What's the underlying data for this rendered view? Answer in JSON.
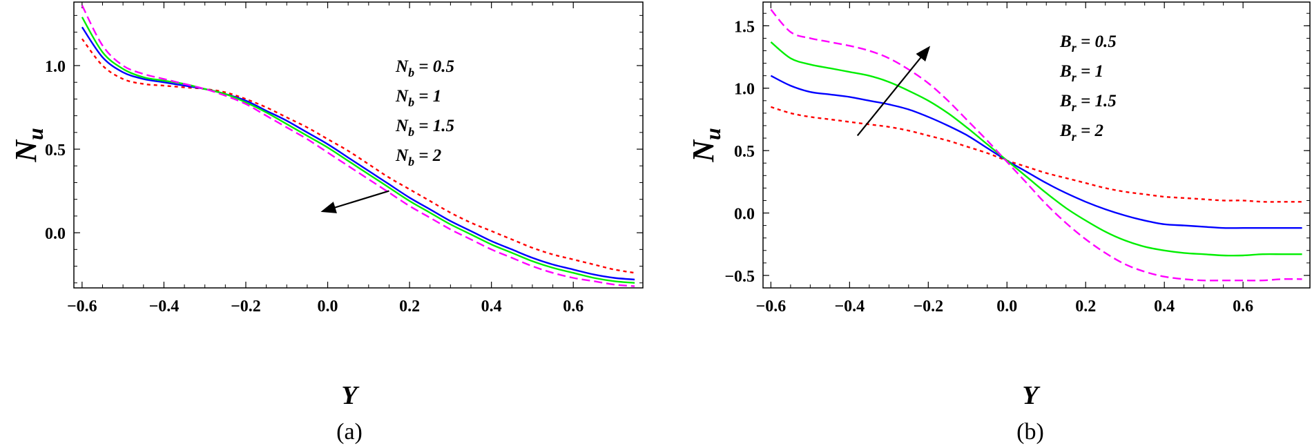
{
  "chart_data": [
    {
      "type": "line",
      "caption": "(a)",
      "xlabel": "Y",
      "ylabel": "N",
      "ylabel_sub": "u",
      "xlim": [
        -0.62,
        0.77
      ],
      "ylim": [
        -0.33,
        1.38
      ],
      "x_ticks": [
        -0.6,
        -0.4,
        -0.2,
        0.0,
        0.2,
        0.4,
        0.6
      ],
      "x_tick_labels": [
        "−0.6",
        "−0.4",
        "−0.2",
        "0.0",
        "0.2",
        "0.4",
        "0.6"
      ],
      "y_ticks": [
        0.0,
        0.5,
        1.0
      ],
      "y_tick_labels": [
        "0.0",
        "0.5",
        "1.0"
      ],
      "legend_position": "center-right",
      "legend": [
        {
          "sym": "N",
          "sub": "b",
          "value": "0.5"
        },
        {
          "sym": "N",
          "sub": "b",
          "value": "1"
        },
        {
          "sym": "N",
          "sub": "b",
          "value": "1.5"
        },
        {
          "sym": "N",
          "sub": "b",
          "value": "2"
        }
      ],
      "arrow": {
        "from": [
          0.15,
          0.25
        ],
        "to": [
          -0.01,
          0.13
        ]
      },
      "series": [
        {
          "name": "Nb = 0.5",
          "color": "#ff0000",
          "dash": "dotted",
          "x": [
            -0.6,
            -0.55,
            -0.5,
            -0.45,
            -0.4,
            -0.35,
            -0.3,
            -0.25,
            -0.2,
            -0.15,
            -0.1,
            -0.05,
            0.0,
            0.05,
            0.1,
            0.15,
            0.2,
            0.25,
            0.3,
            0.35,
            0.4,
            0.45,
            0.5,
            0.55,
            0.6,
            0.65,
            0.7,
            0.75
          ],
          "y": [
            1.16,
            1.0,
            0.92,
            0.89,
            0.88,
            0.87,
            0.86,
            0.84,
            0.8,
            0.75,
            0.69,
            0.63,
            0.56,
            0.49,
            0.41,
            0.33,
            0.26,
            0.19,
            0.12,
            0.06,
            0.01,
            -0.04,
            -0.09,
            -0.13,
            -0.16,
            -0.19,
            -0.22,
            -0.24
          ]
        },
        {
          "name": "Nb = 1",
          "color": "#0000ff",
          "dash": "solid",
          "x": [
            -0.6,
            -0.55,
            -0.5,
            -0.45,
            -0.4,
            -0.35,
            -0.3,
            -0.25,
            -0.2,
            -0.15,
            -0.1,
            -0.05,
            0.0,
            0.05,
            0.1,
            0.15,
            0.2,
            0.25,
            0.3,
            0.35,
            0.4,
            0.45,
            0.5,
            0.55,
            0.6,
            0.65,
            0.7,
            0.75
          ],
          "y": [
            1.23,
            1.05,
            0.96,
            0.92,
            0.9,
            0.88,
            0.86,
            0.83,
            0.79,
            0.73,
            0.67,
            0.6,
            0.53,
            0.45,
            0.37,
            0.29,
            0.21,
            0.14,
            0.07,
            0.01,
            -0.05,
            -0.1,
            -0.15,
            -0.19,
            -0.22,
            -0.25,
            -0.27,
            -0.28
          ]
        },
        {
          "name": "Nb = 1.5",
          "color": "#00ee00",
          "dash": "solid",
          "x": [
            -0.6,
            -0.55,
            -0.5,
            -0.45,
            -0.4,
            -0.35,
            -0.3,
            -0.25,
            -0.2,
            -0.15,
            -0.1,
            -0.05,
            0.0,
            0.05,
            0.1,
            0.15,
            0.2,
            0.25,
            0.3,
            0.35,
            0.4,
            0.45,
            0.5,
            0.55,
            0.6,
            0.65,
            0.7,
            0.75
          ],
          "y": [
            1.29,
            1.08,
            0.98,
            0.93,
            0.91,
            0.89,
            0.86,
            0.83,
            0.78,
            0.72,
            0.65,
            0.58,
            0.51,
            0.43,
            0.35,
            0.27,
            0.19,
            0.12,
            0.05,
            -0.01,
            -0.07,
            -0.12,
            -0.17,
            -0.21,
            -0.24,
            -0.27,
            -0.29,
            -0.3
          ]
        },
        {
          "name": "Nb = 2",
          "color": "#ff00ff",
          "dash": "dashed",
          "x": [
            -0.6,
            -0.55,
            -0.5,
            -0.45,
            -0.4,
            -0.35,
            -0.3,
            -0.25,
            -0.2,
            -0.15,
            -0.1,
            -0.05,
            0.0,
            0.05,
            0.1,
            0.15,
            0.2,
            0.25,
            0.3,
            0.35,
            0.4,
            0.45,
            0.5,
            0.55,
            0.6,
            0.65,
            0.7,
            0.75
          ],
          "y": [
            1.36,
            1.12,
            1.0,
            0.95,
            0.92,
            0.89,
            0.86,
            0.82,
            0.77,
            0.7,
            0.63,
            0.56,
            0.48,
            0.4,
            0.32,
            0.24,
            0.16,
            0.09,
            0.02,
            -0.04,
            -0.1,
            -0.15,
            -0.2,
            -0.24,
            -0.27,
            -0.29,
            -0.31,
            -0.32
          ]
        }
      ]
    },
    {
      "type": "line",
      "caption": "(b)",
      "xlabel": "Y",
      "ylabel": "N",
      "ylabel_sub": "u",
      "xlim": [
        -0.62,
        0.77
      ],
      "ylim": [
        -0.6,
        1.69
      ],
      "x_ticks": [
        -0.6,
        -0.4,
        -0.2,
        0.0,
        0.2,
        0.4,
        0.6
      ],
      "x_tick_labels": [
        "−0.6",
        "−0.4",
        "−0.2",
        "0.0",
        "0.2",
        "0.4",
        "0.6"
      ],
      "y_ticks": [
        -0.5,
        0.0,
        0.5,
        1.0,
        1.5
      ],
      "y_tick_labels": [
        "−0.5",
        "0.0",
        "0.5",
        "1.0",
        "1.5"
      ],
      "legend_position": "top-center",
      "legend": [
        {
          "sym": "B",
          "sub": "r",
          "value": "0.5"
        },
        {
          "sym": "B",
          "sub": "r",
          "value": "1"
        },
        {
          "sym": "B",
          "sub": "r",
          "value": "1.5"
        },
        {
          "sym": "B",
          "sub": "r",
          "value": "2"
        }
      ],
      "arrow": {
        "from": [
          -0.38,
          0.62
        ],
        "to": [
          -0.2,
          1.32
        ]
      },
      "series": [
        {
          "name": "Br = 0.5",
          "color": "#ff0000",
          "dash": "dotted",
          "x": [
            -0.6,
            -0.55,
            -0.5,
            -0.45,
            -0.4,
            -0.35,
            -0.3,
            -0.25,
            -0.2,
            -0.15,
            -0.1,
            -0.05,
            0.0,
            0.05,
            0.1,
            0.15,
            0.2,
            0.25,
            0.3,
            0.35,
            0.4,
            0.45,
            0.5,
            0.55,
            0.6,
            0.65,
            0.7,
            0.75
          ],
          "y": [
            0.85,
            0.8,
            0.77,
            0.75,
            0.73,
            0.71,
            0.69,
            0.66,
            0.62,
            0.58,
            0.53,
            0.48,
            0.42,
            0.37,
            0.32,
            0.28,
            0.24,
            0.2,
            0.17,
            0.15,
            0.13,
            0.12,
            0.11,
            0.1,
            0.1,
            0.09,
            0.09,
            0.09
          ]
        },
        {
          "name": "Br = 1",
          "color": "#0000ff",
          "dash": "solid",
          "x": [
            -0.6,
            -0.55,
            -0.5,
            -0.45,
            -0.4,
            -0.35,
            -0.3,
            -0.25,
            -0.2,
            -0.15,
            -0.1,
            -0.05,
            0.0,
            0.05,
            0.1,
            0.15,
            0.2,
            0.25,
            0.3,
            0.35,
            0.4,
            0.45,
            0.5,
            0.55,
            0.6,
            0.65,
            0.7,
            0.75
          ],
          "y": [
            1.1,
            1.02,
            0.97,
            0.95,
            0.93,
            0.9,
            0.87,
            0.83,
            0.77,
            0.7,
            0.62,
            0.52,
            0.42,
            0.33,
            0.24,
            0.16,
            0.09,
            0.03,
            -0.02,
            -0.06,
            -0.09,
            -0.1,
            -0.11,
            -0.12,
            -0.12,
            -0.12,
            -0.12,
            -0.12
          ]
        },
        {
          "name": "Br = 1.5",
          "color": "#00ee00",
          "dash": "solid",
          "x": [
            -0.6,
            -0.55,
            -0.5,
            -0.45,
            -0.4,
            -0.35,
            -0.3,
            -0.25,
            -0.2,
            -0.15,
            -0.1,
            -0.05,
            0.0,
            0.05,
            0.1,
            0.15,
            0.2,
            0.25,
            0.3,
            0.35,
            0.4,
            0.45,
            0.5,
            0.55,
            0.6,
            0.65,
            0.7,
            0.75
          ],
          "y": [
            1.37,
            1.24,
            1.19,
            1.16,
            1.13,
            1.1,
            1.05,
            0.98,
            0.9,
            0.8,
            0.68,
            0.55,
            0.42,
            0.29,
            0.16,
            0.04,
            -0.06,
            -0.15,
            -0.22,
            -0.27,
            -0.3,
            -0.32,
            -0.33,
            -0.34,
            -0.34,
            -0.33,
            -0.33,
            -0.33
          ]
        },
        {
          "name": "Br = 2",
          "color": "#ff00ff",
          "dash": "dashed",
          "x": [
            -0.6,
            -0.55,
            -0.5,
            -0.45,
            -0.4,
            -0.35,
            -0.3,
            -0.25,
            -0.2,
            -0.15,
            -0.1,
            -0.05,
            0.0,
            0.05,
            0.1,
            0.15,
            0.2,
            0.25,
            0.3,
            0.35,
            0.4,
            0.45,
            0.5,
            0.55,
            0.6,
            0.65,
            0.7,
            0.75
          ],
          "y": [
            1.63,
            1.45,
            1.4,
            1.37,
            1.34,
            1.3,
            1.24,
            1.15,
            1.04,
            0.9,
            0.74,
            0.58,
            0.41,
            0.24,
            0.07,
            -0.08,
            -0.21,
            -0.32,
            -0.41,
            -0.47,
            -0.51,
            -0.53,
            -0.54,
            -0.54,
            -0.54,
            -0.54,
            -0.53,
            -0.53
          ]
        }
      ]
    }
  ]
}
